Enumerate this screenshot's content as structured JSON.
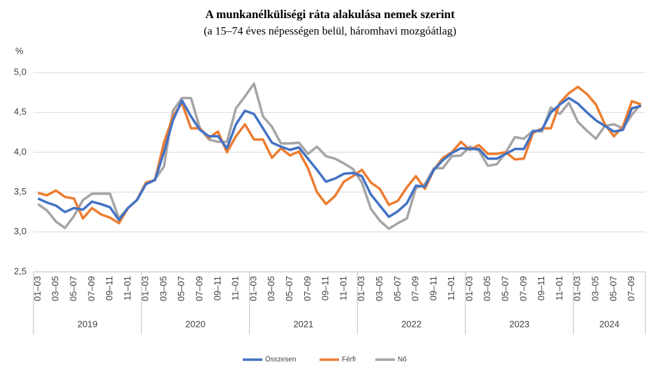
{
  "chart_data": {
    "type": "line",
    "title": "A munkanélküliségi  ráta alakulása nemek szerint",
    "subtitle": "(a 15–74 éves népességen belül, háromhavi mozgóátlag)",
    "y_label": "%",
    "categories": [
      "01–03",
      null,
      "03–05",
      null,
      "05–07",
      null,
      "07–09",
      null,
      "09–11",
      null,
      "11–01",
      null,
      "01–03",
      null,
      "03–05",
      null,
      "05–07",
      null,
      "07–09",
      null,
      "09–11",
      null,
      "11–01",
      null,
      "01–03",
      null,
      "03–05",
      null,
      "05–07",
      null,
      "07–09",
      null,
      "09–11",
      null,
      "11–01",
      null,
      "01–03",
      null,
      "03–05",
      null,
      "05–07",
      null,
      "07–09",
      null,
      "09–11",
      null,
      "11–01",
      null,
      "01–03",
      null,
      "03–05",
      null,
      "05–07",
      null,
      "07–09",
      null,
      "09–11",
      null,
      "11–01",
      null,
      "01–03",
      null,
      "03–05",
      null,
      "05–07",
      null,
      "07–09",
      null
    ],
    "year_labels": [
      "2019",
      "2020",
      "2021",
      "2022",
      "2023",
      "2024"
    ],
    "series": [
      {
        "name": "Összesen",
        "color": "#4472c4",
        "values": [
          3.42,
          3.37,
          3.33,
          3.25,
          3.3,
          3.28,
          3.38,
          3.35,
          3.31,
          3.15,
          3.3,
          3.4,
          3.6,
          3.65,
          4.0,
          4.4,
          4.65,
          4.45,
          4.28,
          4.2,
          4.2,
          4.05,
          4.35,
          4.52,
          4.48,
          4.3,
          4.12,
          4.07,
          4.03,
          4.06,
          3.92,
          3.78,
          3.63,
          3.67,
          3.73,
          3.74,
          3.7,
          3.47,
          3.33,
          3.19,
          3.26,
          3.36,
          3.58,
          3.57,
          3.78,
          3.9,
          3.99,
          4.05,
          4.04,
          4.04,
          3.92,
          3.92,
          3.98,
          4.04,
          4.04,
          4.26,
          4.28,
          4.5,
          4.6,
          4.68,
          4.61,
          4.5,
          4.4,
          4.33,
          4.26,
          4.28,
          4.55,
          4.58
        ]
      },
      {
        "name": "Férfi",
        "color": "#ed7d31",
        "values": [
          3.49,
          3.46,
          3.52,
          3.44,
          3.42,
          3.17,
          3.3,
          3.22,
          3.18,
          3.11,
          3.3,
          3.4,
          3.62,
          3.65,
          4.12,
          4.45,
          4.62,
          4.3,
          4.3,
          4.18,
          4.26,
          4.0,
          4.2,
          4.35,
          4.16,
          4.16,
          3.93,
          4.05,
          3.96,
          4.01,
          3.8,
          3.5,
          3.35,
          3.45,
          3.63,
          3.7,
          3.78,
          3.62,
          3.54,
          3.34,
          3.39,
          3.56,
          3.7,
          3.54,
          3.78,
          3.93,
          4.0,
          4.13,
          4.03,
          4.09,
          3.98,
          3.98,
          4.0,
          3.91,
          3.92,
          4.24,
          4.3,
          4.3,
          4.62,
          4.74,
          4.82,
          4.73,
          4.6,
          4.35,
          4.2,
          4.32,
          4.64,
          4.6
        ]
      },
      {
        "name": "Nő",
        "color": "#a5a5a5",
        "values": [
          3.35,
          3.27,
          3.13,
          3.05,
          3.2,
          3.4,
          3.48,
          3.48,
          3.48,
          3.17,
          3.3,
          3.4,
          3.6,
          3.66,
          3.82,
          4.52,
          4.68,
          4.68,
          4.3,
          4.16,
          4.13,
          4.13,
          4.55,
          4.7,
          4.86,
          4.45,
          4.32,
          4.11,
          4.11,
          4.12,
          3.98,
          4.07,
          3.95,
          3.92,
          3.86,
          3.79,
          3.62,
          3.29,
          3.14,
          3.04,
          3.11,
          3.17,
          3.55,
          3.6,
          3.8,
          3.8,
          3.95,
          3.96,
          4.07,
          4.02,
          3.83,
          3.85,
          4.0,
          4.19,
          4.17,
          4.27,
          4.26,
          4.56,
          4.48,
          4.62,
          4.38,
          4.27,
          4.17,
          4.33,
          4.35,
          4.3,
          4.47,
          4.6
        ]
      }
    ],
    "ylim": [
      2.5,
      5.0
    ],
    "yticks": [
      {
        "value": 2.5,
        "label": "2,5"
      },
      {
        "value": 3.0,
        "label": "3,0"
      },
      {
        "value": 3.5,
        "label": "3,5"
      },
      {
        "value": 4.0,
        "label": "4,0"
      },
      {
        "value": 4.5,
        "label": "4,5"
      },
      {
        "value": 5.0,
        "label": "5,0"
      }
    ],
    "grid": true,
    "legend": "bottom"
  }
}
